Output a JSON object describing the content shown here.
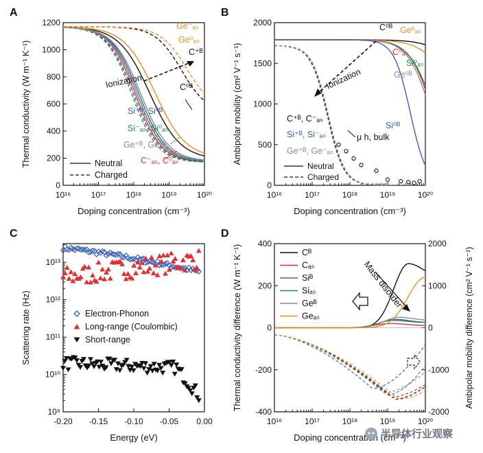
{
  "figure": {
    "watermark": "半导体行业观察",
    "colors": {
      "black": "#111111",
      "red": "#e03030",
      "blue": "#3a5fb8",
      "green": "#1f8a4c",
      "gray": "#8c8c8c",
      "orange": "#f08c1e"
    }
  },
  "chart_data": [
    {
      "panel": "A",
      "type": "line",
      "xlabel": "Doping concentration (cm⁻³)",
      "ylabel": "Thermal conductivity (W m⁻¹ K⁻¹)",
      "xscale": "log",
      "xlim": [
        16,
        20
      ],
      "ylim": [
        0,
        1200
      ],
      "xticks": [
        16,
        17,
        18,
        19,
        20
      ],
      "xtick_labels": [
        "10¹⁶",
        "10¹⁷",
        "10¹⁸",
        "10¹⁹",
        "10²⁰"
      ],
      "yticks": [
        0,
        200,
        400,
        600,
        800,
        1000,
        1200
      ],
      "ytick_labels": [
        "0",
        "200",
        "400",
        "600",
        "800",
        "1000",
        "1200"
      ],
      "legend": [
        {
          "label": "Neutral",
          "style": "solid"
        },
        {
          "label": "Charged",
          "style": "dashed"
        }
      ],
      "legend_placement": "bottom-left",
      "annotations": [
        "Ge⁻ₐₛ",
        "Ge⁰ₐₛ",
        "C⁺ᴮ",
        "C⁰ᴮ",
        "Ionization",
        "Si⁺ᴮ, Si⁰ᴮ",
        "Si⁻ₐₛ, Si⁰ₐₛ",
        "Ge⁺ᴮ, Ge⁰ᴮ",
        "C⁻ₐₛ, C⁰ₐₛ"
      ],
      "series": [
        {
          "name": "C_B neutral",
          "color": "black",
          "style": "solid",
          "x0": 18.45,
          "width": 1.0,
          "min": 190
        },
        {
          "name": "C_As neutral",
          "color": "red",
          "style": "solid",
          "x0": 18.05,
          "width": 0.85,
          "min": 170
        },
        {
          "name": "Si_B neutral",
          "color": "blue",
          "style": "solid",
          "x0": 18.15,
          "width": 0.88,
          "min": 175
        },
        {
          "name": "Si_As neutral",
          "color": "green",
          "style": "solid",
          "x0": 18.1,
          "width": 0.86,
          "min": 172
        },
        {
          "name": "Ge_B neutral",
          "color": "gray",
          "style": "solid",
          "x0": 18.2,
          "width": 0.9,
          "min": 178
        },
        {
          "name": "Ge_As neutral",
          "color": "orange",
          "style": "solid",
          "x0": 18.6,
          "width": 1.0,
          "min": 200
        },
        {
          "name": "C_B charged",
          "color": "black",
          "style": "dashed",
          "x0": 19.35,
          "width": 0.85,
          "min": 530
        },
        {
          "name": "C_As charged",
          "color": "red",
          "style": "dashed",
          "x0": 18.0,
          "width": 0.85,
          "min": 170
        },
        {
          "name": "Si_B charged",
          "color": "blue",
          "style": "dashed",
          "x0": 18.0,
          "width": 0.86,
          "min": 170
        },
        {
          "name": "Si_As charged",
          "color": "green",
          "style": "dashed",
          "x0": 17.95,
          "width": 0.84,
          "min": 168
        },
        {
          "name": "Ge_B charged",
          "color": "gray",
          "style": "dashed",
          "x0": 18.1,
          "width": 0.88,
          "min": 175
        },
        {
          "name": "Ge_As charged",
          "color": "orange",
          "style": "dashed",
          "x0": 19.5,
          "width": 0.85,
          "min": 550
        }
      ],
      "y_at_zero": 1170
    },
    {
      "panel": "B",
      "type": "line",
      "xlabel": "Doping concentration (cm⁻³)",
      "ylabel": "Ambipolar mobility (cm² V⁻¹ s⁻¹)",
      "xscale": "log",
      "xlim": [
        16,
        20
      ],
      "ylim": [
        0,
        2000
      ],
      "xticks": [
        16,
        17,
        18,
        19,
        20
      ],
      "xtick_labels": [
        "10¹⁶",
        "10¹⁷",
        "10¹⁸",
        "10¹⁹",
        "10²⁰"
      ],
      "yticks": [
        0,
        500,
        1000,
        1500,
        2000
      ],
      "ytick_labels": [
        "0",
        "500",
        "1000",
        "1500",
        "2000"
      ],
      "legend": [
        {
          "label": "Neutral",
          "style": "solid"
        },
        {
          "label": "Charged",
          "style": "dashed"
        }
      ],
      "legend_placement": "bottom-left",
      "annotations": [
        "C⁰ᴮ",
        "Ge⁰ₐₛ",
        "C⁰ₐₛ",
        "Si⁰ₐₛ",
        "Ge⁰ᴮ",
        "Si⁰ᴮ",
        "Ionization",
        "C⁺ᴮ, C⁻ₐₛ",
        "Si⁺ᴮ, Si⁻ₐₛ",
        "Ge⁺ᴮ, Ge⁻ₐₛ",
        "μ h, bulk"
      ],
      "series": [
        {
          "name": "C_B neutral",
          "color": "black",
          "style": "solid",
          "x0": 21.3,
          "width": 0.9,
          "min": 0
        },
        {
          "name": "Ge_As neutral",
          "color": "orange",
          "style": "solid",
          "x0": 20.9,
          "width": 0.9,
          "min": 0
        },
        {
          "name": "C_As neutral",
          "color": "red",
          "style": "solid",
          "x0": 20.2,
          "width": 0.7,
          "min": 0
        },
        {
          "name": "Si_As neutral",
          "color": "green",
          "style": "solid",
          "x0": 20.25,
          "width": 0.75,
          "min": 0
        },
        {
          "name": "Ge_B neutral",
          "color": "gray",
          "style": "solid",
          "x0": 20.15,
          "width": 0.7,
          "min": 0
        },
        {
          "name": "Si_B neutral",
          "color": "blue",
          "style": "solid",
          "x0": 19.6,
          "width": 0.5,
          "min": 0
        },
        {
          "name": "charged (all)",
          "color": "mixed",
          "style": "dashed",
          "x0": 17.4,
          "width": 0.5,
          "min": 0
        }
      ],
      "y_at_zero": 1790,
      "bulk_points": {
        "x": [
          17.7,
          17.9,
          18.1,
          18.3,
          18.7,
          19.0,
          19.35,
          19.55,
          19.7,
          19.85
        ],
        "y": [
          500,
          420,
          330,
          250,
          180,
          70,
          50,
          40,
          30,
          50
        ]
      }
    },
    {
      "panel": "C",
      "type": "scatter",
      "xlabel": "Energy (eV)",
      "ylabel": "Scattering rate (Hz)",
      "yscale": "log",
      "xlim": [
        -0.2,
        0.0
      ],
      "ylim": [
        9,
        13.5
      ],
      "xticks": [
        -0.2,
        -0.15,
        -0.1,
        -0.05,
        0.0
      ],
      "xtick_labels": [
        "-0.20",
        "-0.15",
        "-0.10",
        "-0.05",
        "0.00"
      ],
      "yticks": [
        9,
        10,
        11,
        12,
        13
      ],
      "ytick_labels": [
        "10⁹",
        "10¹⁰",
        "10¹¹",
        "10¹²",
        "10¹³"
      ],
      "legend": [
        {
          "label": "Electron-Phonon",
          "marker": "diamond",
          "color": "blue"
        },
        {
          "label": "Long-range (Coulombic)",
          "marker": "triangle-up",
          "color": "red"
        },
        {
          "label": "Short-range",
          "marker": "triangle-down",
          "color": "black"
        }
      ],
      "legend_placement": "center",
      "series": [
        {
          "name": "Electron-Phonon",
          "count": 70,
          "log_start": 13.38,
          "log_end": 12.72
        },
        {
          "name": "Long-range (Coulombic)",
          "count": 70,
          "log_start": 12.6,
          "log_end": 13.1
        },
        {
          "name": "Short-range",
          "count": 80,
          "log_start": 10.3,
          "log_end": 9.1
        }
      ]
    },
    {
      "panel": "D",
      "type": "line",
      "xlabel": "Doping concentration (cm⁻³)",
      "ylabel": "Thermal conductivity difference (W m⁻¹ K⁻¹)",
      "y2label": "Ambipolar mobility difference (cm² V⁻¹ s⁻¹)",
      "xscale": "log",
      "xlim": [
        16,
        20
      ],
      "ylim": [
        -400,
        400
      ],
      "y2lim": [
        -2000,
        2000
      ],
      "xticks": [
        16,
        17,
        18,
        19,
        20
      ],
      "xtick_labels": [
        "10¹⁶",
        "10¹⁷",
        "10¹⁸",
        "10¹⁹",
        "10²⁰"
      ],
      "yticks": [
        -400,
        -200,
        0,
        200,
        400
      ],
      "ytick_labels": [
        "-400",
        "-200",
        "0",
        "200",
        "400"
      ],
      "y2ticks": [
        -2000,
        -1000,
        0,
        1000,
        2000
      ],
      "y2tick_labels": [
        "-2000",
        "-1000",
        "0",
        "1000",
        "2000"
      ],
      "legend": [
        {
          "label": "Cᴮ",
          "color": "black"
        },
        {
          "label": "Cₐₛ",
          "color": "red"
        },
        {
          "label": "Siᴮ",
          "color": "blue"
        },
        {
          "label": "Siₐₛ",
          "color": "green"
        },
        {
          "label": "Geᴮ",
          "color": "gray"
        },
        {
          "label": "Geₐₛ",
          "color": "orange"
        }
      ],
      "legend_placement": "top-left",
      "annotations": [
        "Mass disorder"
      ],
      "series_solid": [
        {
          "name": "C_B",
          "color": "black",
          "peak": 305,
          "center": 19.55,
          "width": 0.55,
          "end": 245
        },
        {
          "name": "C_As",
          "color": "red",
          "peak": 20,
          "center": 19.1,
          "width": 0.6,
          "end": 10
        },
        {
          "name": "Si_B",
          "color": "blue",
          "peak": 40,
          "center": 19.2,
          "width": 0.55,
          "end": 25
        },
        {
          "name": "Si_As",
          "color": "green",
          "peak": 35,
          "center": 19.15,
          "width": 0.55,
          "end": 25
        },
        {
          "name": "Ge_B",
          "color": "gray",
          "peak": 50,
          "center": 19.3,
          "width": 0.55,
          "end": 35
        },
        {
          "name": "Ge_As",
          "color": "orange",
          "peak": 240,
          "center": 20.0,
          "width": 0.65,
          "end": 240
        }
      ],
      "series_dashed": [
        {
          "name": "C_B",
          "color": "black",
          "min": -1700,
          "center": 19.2,
          "end": -1400
        },
        {
          "name": "C_As",
          "color": "red",
          "min": -1650,
          "center": 19.1,
          "end": -1350
        },
        {
          "name": "Si_B",
          "color": "blue",
          "min": -1450,
          "center": 18.6,
          "end": -400
        },
        {
          "name": "Si_As",
          "color": "green",
          "min": -1600,
          "center": 19.0,
          "end": -900
        },
        {
          "name": "Ge_B",
          "color": "gray",
          "min": -1550,
          "center": 18.9,
          "end": -1050
        },
        {
          "name": "Ge_As",
          "color": "orange",
          "min": -1700,
          "center": 19.3,
          "end": -1500
        }
      ]
    }
  ]
}
